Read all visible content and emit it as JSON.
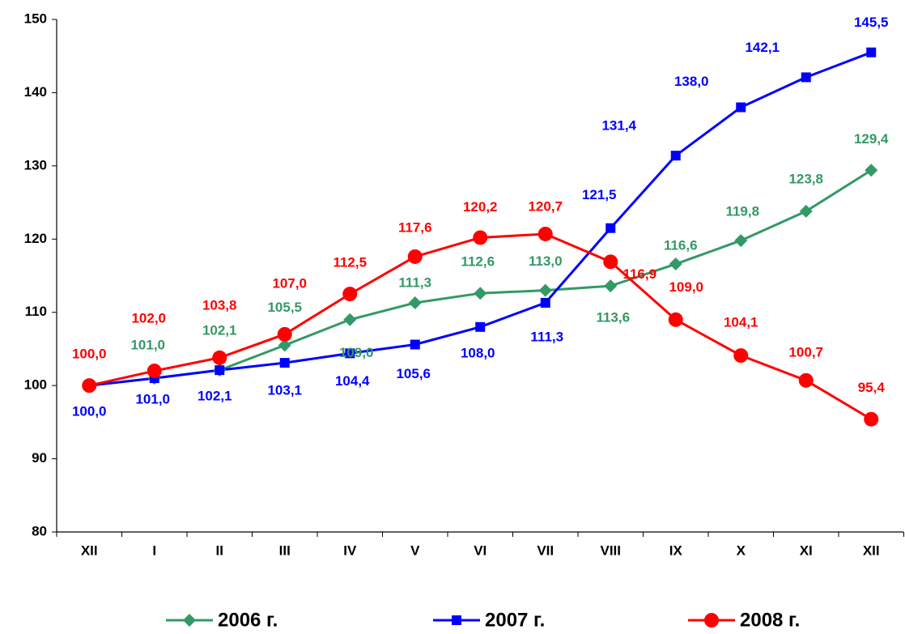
{
  "chart_data": {
    "type": "line",
    "categories": [
      "XII",
      "I",
      "II",
      "III",
      "IV",
      "V",
      "VI",
      "VII",
      "VIII",
      "IX",
      "X",
      "XI",
      "XII"
    ],
    "ylim": [
      80,
      150
    ],
    "yticks": [
      80,
      90,
      100,
      110,
      120,
      130,
      140,
      150
    ],
    "grid": false,
    "legend": "bottom",
    "series": [
      {
        "name": "2006 г.",
        "color": "#339966",
        "marker": "diamond",
        "values": [
          100.0,
          101.0,
          102.1,
          105.5,
          109.0,
          111.3,
          112.6,
          113.0,
          113.6,
          116.6,
          119.8,
          123.8,
          129.4
        ],
        "value_labels": [
          null,
          "101,0",
          "102,1",
          "105,5",
          "109,0",
          "111,3",
          "112,6",
          "113,0",
          "113,6",
          "116,6",
          "119,8",
          "123,8",
          "129,4"
        ]
      },
      {
        "name": "2007 г.",
        "color": "#0000ff",
        "marker": "square",
        "values": [
          100.0,
          101.0,
          102.1,
          103.1,
          104.4,
          105.6,
          108.0,
          111.3,
          121.5,
          131.4,
          138.0,
          142.1,
          145.5
        ],
        "value_labels": [
          "100,0",
          "101,0",
          "102,1",
          "103,1",
          "104,4",
          "105,6",
          "108,0",
          "111,3",
          "121,5",
          "131,4",
          "138,0",
          "142,1",
          "145,5"
        ]
      },
      {
        "name": "2008 г.",
        "color": "#ff0000",
        "marker": "circle",
        "values": [
          100.0,
          102.0,
          103.8,
          107.0,
          112.5,
          117.6,
          120.2,
          120.7,
          116.9,
          109.0,
          104.1,
          100.7,
          95.4
        ],
        "value_labels": [
          "100,0",
          "102,0",
          "103,8",
          "107,0",
          "112,5",
          "117,6",
          "120,2",
          "120,7",
          "116,9",
          "109,0",
          "104,1",
          "100,7",
          "95,4"
        ]
      }
    ]
  }
}
